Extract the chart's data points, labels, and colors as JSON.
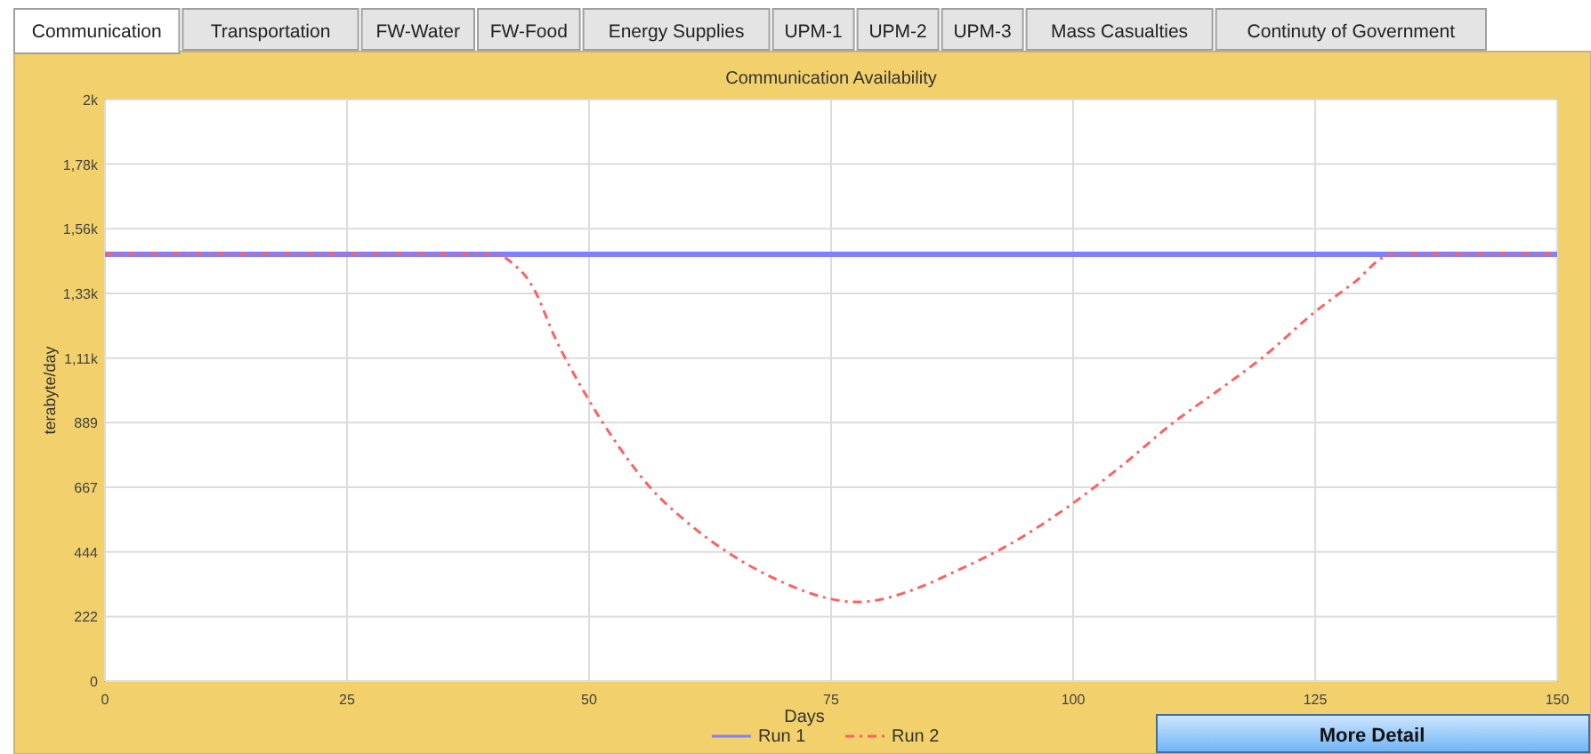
{
  "chart_data": {
    "type": "line",
    "title": "Communication Availability",
    "xlabel": "Days",
    "ylabel": "terabyte/day",
    "annotations": [
      "Communication",
      "Transportation",
      "FW-Water",
      "FW-Food",
      "Energy Supplies",
      "UPM-1",
      "UPM-2",
      "UPM-3",
      "Mass Casualties",
      "Continuty of Government",
      "More Detail"
    ],
    "xlim": [
      0,
      150
    ],
    "xticks": [
      0,
      25,
      50,
      75,
      100,
      125,
      150
    ],
    "ylim": [
      0,
      2000
    ],
    "yticks": [
      0,
      222,
      444,
      667,
      889,
      {
        "value": 1111,
        "label": "1,11k"
      },
      {
        "value": 1333,
        "label": "1,33k"
      },
      {
        "value": 1556,
        "label": "1,56k"
      },
      {
        "value": 1778,
        "label": "1,78k"
      },
      {
        "value": 2000,
        "label": "2k"
      }
    ],
    "grid": true,
    "legend": "bottom",
    "series": [
      {
        "name": "Run 1",
        "color": "#8080ff",
        "line_style": "solid",
        "x": [
          0,
          150
        ],
        "values": [
          1468,
          1468
        ]
      },
      {
        "name": "Run 2",
        "color": "#ff6060",
        "line_style": "dashed",
        "x": [
          0,
          38,
          40.6,
          42.5,
          43.4,
          44.3,
          46.5,
          49.5,
          53,
          56.5,
          60,
          64.5,
          70,
          74.9,
          77.7,
          80,
          83.3,
          88,
          93,
          100,
          105,
          110.4,
          115,
          119.5,
          125.1,
          129,
          132.7,
          135,
          150
        ],
        "values": [
          1468,
          1468,
          1465,
          1425,
          1395,
          1349,
          1180,
          994,
          810,
          659,
          550,
          439,
          340,
          283,
          272,
          280,
          312,
          380,
          462,
          612,
          740,
          890,
          1000,
          1111,
          1273,
          1370,
          1465,
          1468,
          1468
        ]
      }
    ]
  }
}
